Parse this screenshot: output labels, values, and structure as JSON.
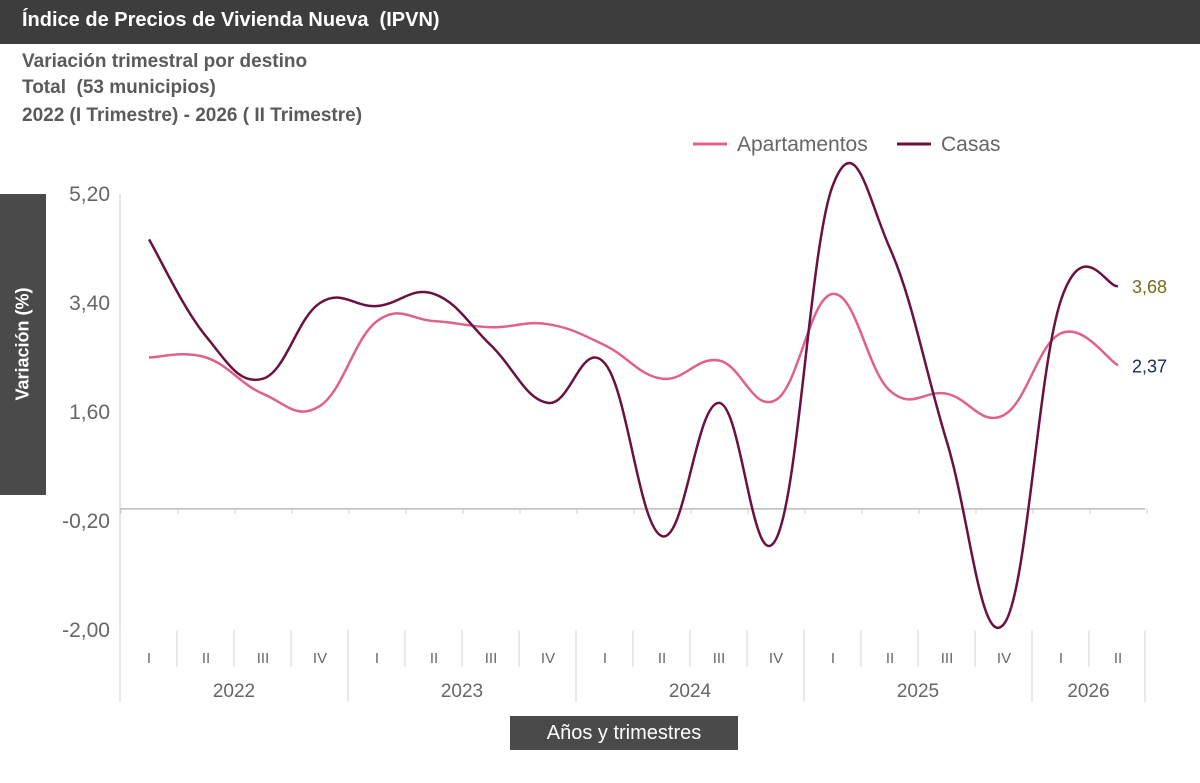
{
  "header": {
    "title": "Índice de Precios de Vivienda Nueva  (IPVN)"
  },
  "subtitles": [
    "Variación trimestral por destino",
    "Total  (53 municipios)",
    "2022 (I Trimestre) - 2026 ( II Trimestre)"
  ],
  "colors": {
    "apartamentos": "#e0608f",
    "casas": "#6b1140",
    "label_casas": "#7a6a1a",
    "label_apartamentos": "#1a2a5a"
  },
  "chart_data": {
    "type": "line",
    "title": "Índice de Precios de Vivienda Nueva  (IPVN)",
    "ylabel": "Variación (%)",
    "xlabel": "Años y trimestres",
    "ylim": [
      -2.0,
      5.2
    ],
    "yticks": [
      "5,20",
      "3,40",
      "1,60",
      "-0,20",
      "-2,00"
    ],
    "ytick_values": [
      5.2,
      3.4,
      1.6,
      -0.2,
      -2.0
    ],
    "years": [
      "2022",
      "2023",
      "2024",
      "2025",
      "2026"
    ],
    "quarters_per_year": [
      4,
      4,
      4,
      4,
      2
    ],
    "categories": [
      "I",
      "II",
      "III",
      "IV",
      "I",
      "II",
      "III",
      "IV",
      "I",
      "II",
      "III",
      "IV",
      "I",
      "II",
      "III",
      "IV",
      "I",
      "II"
    ],
    "legend_position": "top-center",
    "series": [
      {
        "name": "Apartamentos",
        "values": [
          2.5,
          2.5,
          1.9,
          1.7,
          3.1,
          3.1,
          3.0,
          3.05,
          2.7,
          2.15,
          2.45,
          1.8,
          3.55,
          1.95,
          1.9,
          1.55,
          2.9,
          2.37
        ]
      },
      {
        "name": "Casas",
        "values": [
          4.45,
          2.85,
          2.15,
          3.4,
          3.35,
          3.55,
          2.7,
          1.75,
          2.4,
          -0.45,
          1.75,
          -0.5,
          5.35,
          4.3,
          1.1,
          -1.9,
          3.45,
          3.68
        ]
      }
    ],
    "end_labels": {
      "Casas": "3,68",
      "Apartamentos": "2,37"
    },
    "grid": false
  }
}
